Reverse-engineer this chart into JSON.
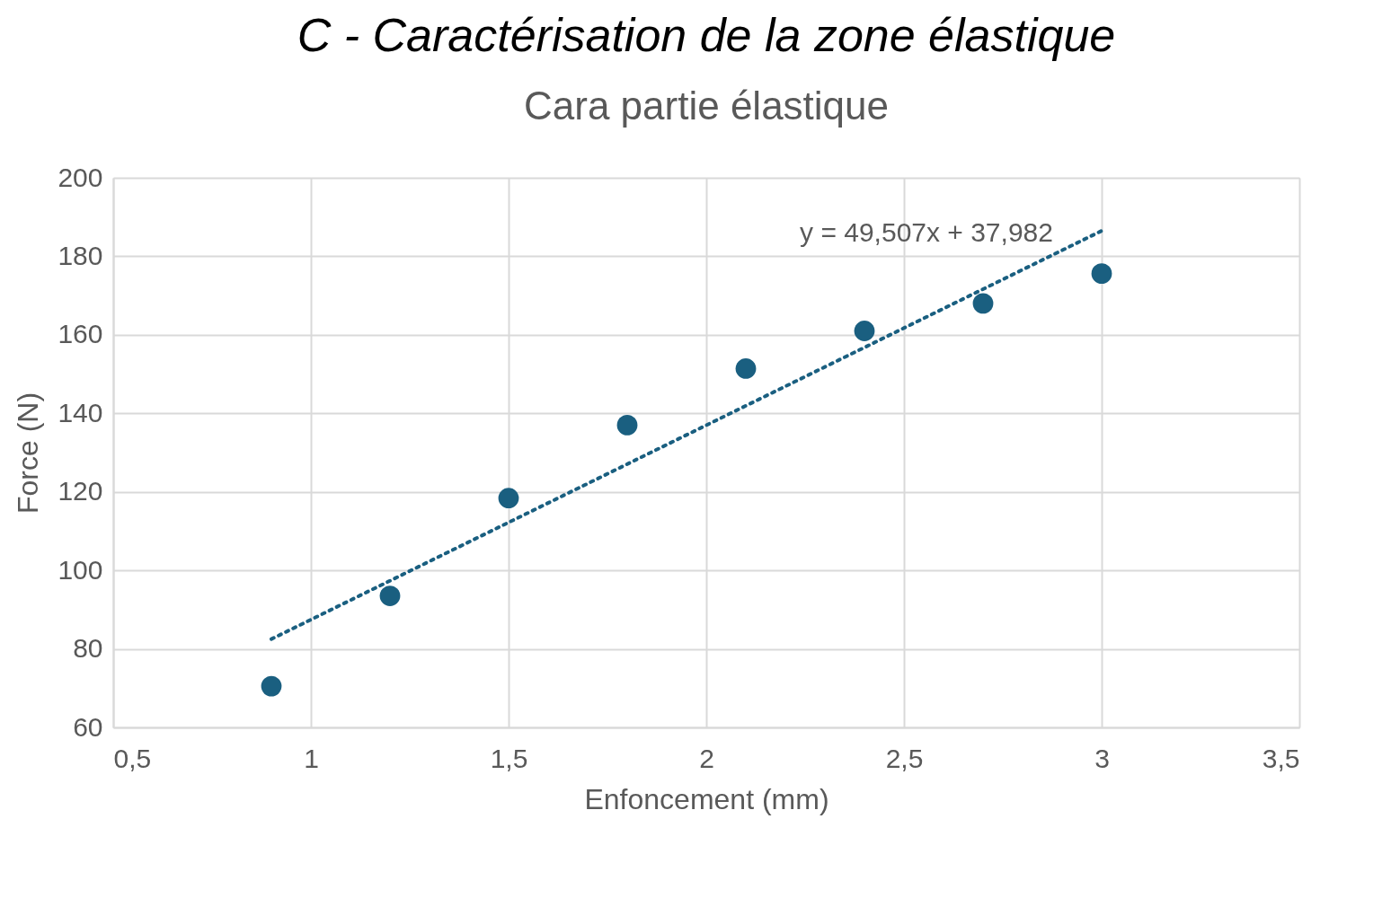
{
  "chart_data": {
    "type": "scatter",
    "title": "C - Caractérisation de la zone élastique",
    "subtitle": "Cara partie élastique",
    "xlabel": "Enfoncement (mm)",
    "ylabel": "Force (N)",
    "series": [
      {
        "color": "#1a5f80",
        "marker": "circle",
        "x": [
          0.9,
          1.2,
          1.5,
          1.8,
          2.1,
          2.4,
          2.7,
          3.0
        ],
        "values": [
          70.5,
          93.5,
          118.4,
          137,
          151.4,
          161,
          168,
          175.6
        ]
      },
      {
        "type": "line",
        "color": "#1a5f80",
        "line_style": "dotted",
        "x": [
          0.9,
          3.0
        ],
        "values": [
          82.5,
          186.5
        ]
      }
    ],
    "annotations": [
      "y = 49,507x + 37,982"
    ],
    "xlim": [
      0.5,
      3.5
    ],
    "xticks": [
      {
        "value": 0.5,
        "label": "0,5"
      },
      1,
      {
        "value": 1.5,
        "label": "1,5"
      },
      2,
      {
        "value": 2.5,
        "label": "2,5"
      },
      3,
      {
        "value": 3.5,
        "label": "3,5"
      }
    ],
    "ylim": [
      60,
      200
    ],
    "yticks": [
      60,
      80,
      100,
      120,
      140,
      160,
      180,
      200
    ],
    "grid": true,
    "legend": false
  }
}
